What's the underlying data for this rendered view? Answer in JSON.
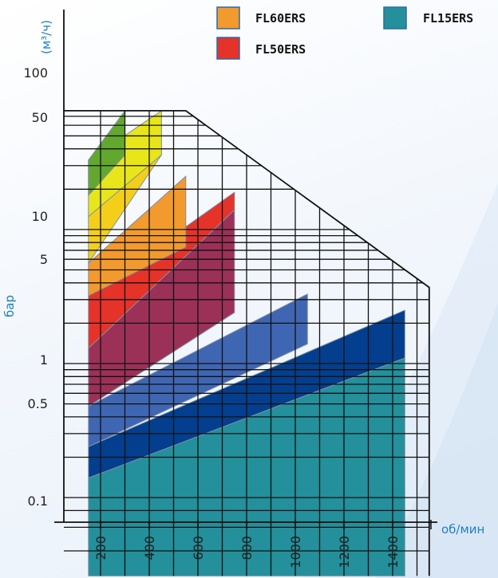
{
  "chart_data": {
    "type": "area",
    "x_unit_label": "об/мин",
    "y_unit_label": "(м³/ч)",
    "y_axis_label": "бар",
    "x_ticks": [
      "200",
      "400",
      "600",
      "800",
      "1000",
      "1200",
      "1400"
    ],
    "y_ticks": [
      "0.1",
      "0.5",
      "1",
      "5",
      "10",
      "50",
      "100"
    ],
    "xlim": [
      100,
      1500
    ],
    "legend": [
      {
        "name": "FL60ERS",
        "color": "#f29a2e"
      },
      {
        "name": "FL50ERS",
        "color": "#e5332a"
      },
      {
        "name": "FL15ERS",
        "color": "#23909b"
      }
    ],
    "bands": [
      {
        "color": "#23909b",
        "polygon": [
          [
            150,
            0.14
          ],
          [
            1450,
            1.1
          ],
          [
            1450,
            0.026
          ],
          [
            150,
            0.026
          ]
        ]
      },
      {
        "color": "#033f8e",
        "polygon": [
          [
            150,
            0.24
          ],
          [
            1450,
            2.5
          ],
          [
            1450,
            1.1
          ],
          [
            150,
            0.14
          ]
        ]
      },
      {
        "color": "#3f66b2",
        "polygon": [
          [
            150,
            0.48
          ],
          [
            1050,
            3.3
          ],
          [
            1050,
            1.4
          ],
          [
            150,
            0.24
          ]
        ]
      },
      {
        "color": "#9c3158",
        "polygon": [
          [
            150,
            1.3
          ],
          [
            750,
            14
          ],
          [
            750,
            2.4
          ],
          [
            150,
            0.48
          ]
        ]
      },
      {
        "color": "#e5332a",
        "polygon": [
          [
            150,
            3.2
          ],
          [
            750,
            19
          ],
          [
            750,
            14
          ],
          [
            150,
            1.3
          ]
        ]
      },
      {
        "color": "#f29a2e",
        "polygon": [
          [
            150,
            5.6
          ],
          [
            550,
            25
          ],
          [
            550,
            7.4
          ],
          [
            150,
            3.2
          ]
        ]
      },
      {
        "color": "#f4cf1a",
        "polygon": [
          [
            150,
            12.5
          ],
          [
            450,
            77
          ],
          [
            450,
            36
          ],
          [
            150,
            5.6
          ]
        ]
      },
      {
        "color": "#e8e61a",
        "polygon": [
          [
            150,
            33
          ],
          [
            450,
            77
          ],
          [
            450,
            36
          ],
          [
            150,
            12.5
          ]
        ]
      },
      {
        "color": "#62a82f",
        "polygon": [
          [
            150,
            33
          ],
          [
            300,
            77
          ],
          [
            300,
            36
          ],
          [
            150,
            18
          ]
        ]
      }
    ],
    "envelope": [
      [
        150,
        77
      ],
      [
        550,
        77
      ],
      [
        1550,
        3.7
      ],
      [
        1550,
        0.026
      ]
    ]
  }
}
